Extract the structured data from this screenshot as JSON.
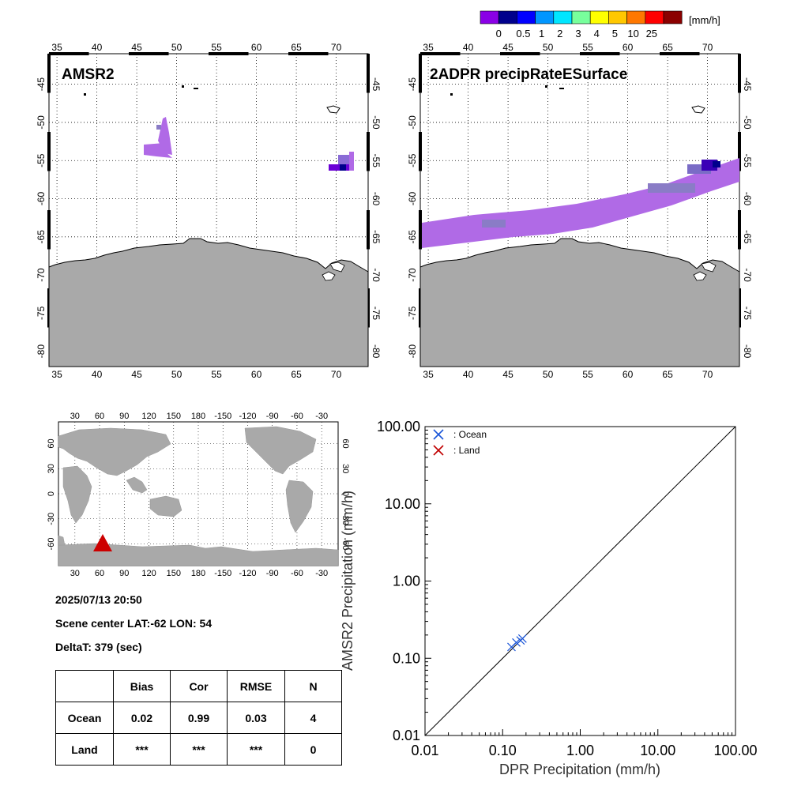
{
  "colorbar": {
    "unit": "[mm/h]",
    "colors": [
      "#8a00e6",
      "#00008c",
      "#0000ff",
      "#0096ff",
      "#00e6ff",
      "#78ff9c",
      "#ffff00",
      "#ffc800",
      "#ff7800",
      "#ff0000",
      "#8b0000"
    ],
    "labels": [
      "0",
      "0.5",
      "1",
      "2",
      "3",
      "4",
      "5",
      "10",
      "25"
    ]
  },
  "map_amsr2": {
    "title": "AMSR2",
    "lon_ticks": [
      "35",
      "40",
      "45",
      "50",
      "55",
      "60",
      "65",
      "70"
    ],
    "lat_ticks": [
      "-45",
      "-50",
      "-55",
      "-60",
      "-65",
      "-70",
      "-75",
      "-80"
    ]
  },
  "map_dpr": {
    "title": "2ADPR precipRateESurface",
    "lon_ticks": [
      "35",
      "40",
      "45",
      "50",
      "55",
      "60",
      "65",
      "70"
    ],
    "lat_ticks": [
      "-45",
      "-50",
      "-55",
      "-60",
      "-65",
      "-70",
      "-75",
      "-80"
    ]
  },
  "globe": {
    "lon_ticks": [
      "30",
      "60",
      "90",
      "120",
      "150",
      "180",
      "-150",
      "-120",
      "-90",
      "-60",
      "-30"
    ],
    "lat_ticks": [
      "60",
      "30",
      "0",
      "-30",
      "-60"
    ],
    "marker_color": "#cc0000"
  },
  "info": {
    "datetime": "2025/07/13 20:50",
    "scene_center": "Scene center LAT:-62   LON:  54",
    "delta_t": "DeltaT:  379 (sec)"
  },
  "stats_table": {
    "headers": [
      "",
      "Bias",
      "Cor",
      "RMSE",
      "N"
    ],
    "rows": [
      [
        "Ocean",
        "0.02",
        "0.99",
        "0.03",
        "4"
      ],
      [
        "Land",
        "***",
        "***",
        "***",
        "0"
      ]
    ]
  },
  "chart_data": {
    "type": "scatter",
    "xlabel": "DPR Precipitation (mm/h)",
    "ylabel": "AMSR2 Precipitation (mm/h)",
    "xscale": "log",
    "yscale": "log",
    "xlim": [
      0.01,
      100
    ],
    "ylim": [
      0.01,
      100
    ],
    "x_tick_labels": [
      "0.01",
      "0.10",
      "1.00",
      "10.00",
      "100.00"
    ],
    "y_tick_labels": [
      "0.01",
      "0.10",
      "1.00",
      "10.00",
      "100.00"
    ],
    "legend": [
      {
        "label": ": Ocean",
        "color": "#1a55d8"
      },
      {
        "label": ": Land",
        "color": "#c00000"
      }
    ],
    "legend_position": "top-left",
    "series": [
      {
        "name": "Ocean",
        "x": [
          0.13,
          0.15,
          0.17,
          0.18
        ],
        "y": [
          0.14,
          0.16,
          0.17,
          0.18
        ]
      },
      {
        "name": "Land",
        "x": [],
        "y": []
      }
    ],
    "reference_line": "1:1"
  }
}
